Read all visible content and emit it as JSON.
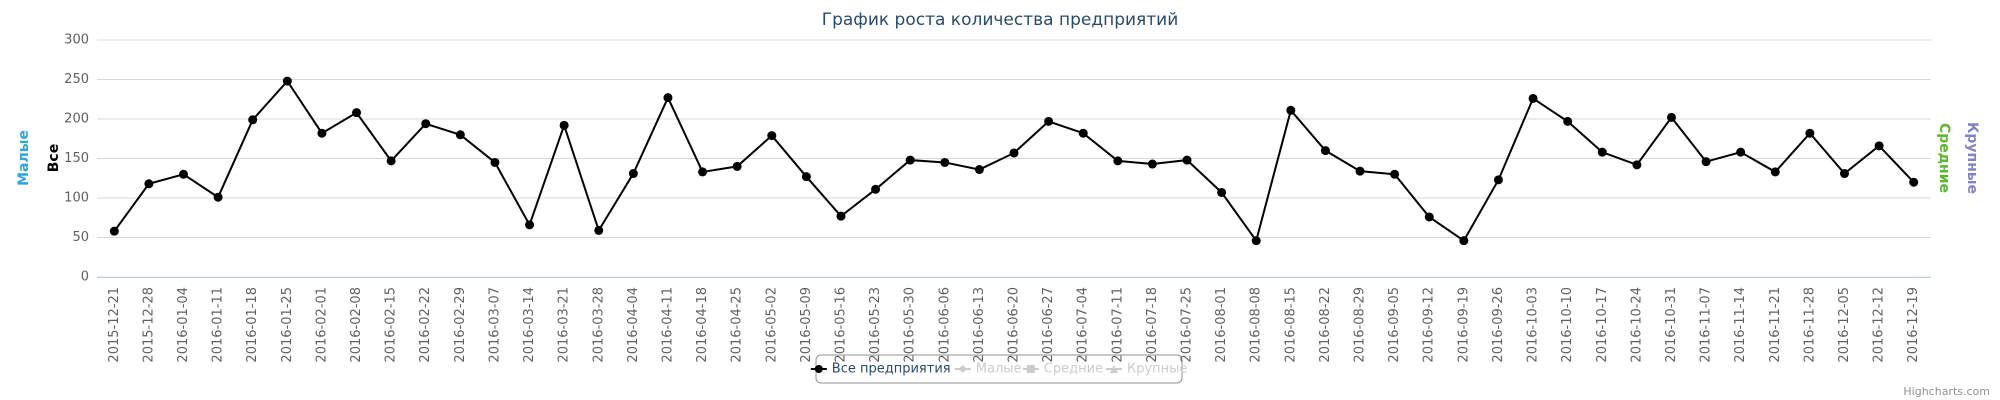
{
  "chart_data": {
    "type": "line",
    "title": "График роста количества предприятий",
    "y_axis_titles": [
      {
        "text": "Малые",
        "color": "#2ea6d8",
        "side": "left"
      },
      {
        "text": "Все",
        "color": "#000000",
        "side": "left"
      },
      {
        "text": "Средние",
        "color": "#5cb82e",
        "side": "right"
      },
      {
        "text": "Крупные",
        "color": "#8085c8",
        "side": "right"
      }
    ],
    "categories": [
      "2015-12-21",
      "2015-12-28",
      "2016-01-04",
      "2016-01-11",
      "2016-01-18",
      "2016-01-25",
      "2016-02-01",
      "2016-02-08",
      "2016-02-15",
      "2016-02-22",
      "2016-02-29",
      "2016-03-07",
      "2016-03-14",
      "2016-03-21",
      "2016-03-28",
      "2016-04-04",
      "2016-04-11",
      "2016-04-18",
      "2016-04-25",
      "2016-05-02",
      "2016-05-09",
      "2016-05-16",
      "2016-05-23",
      "2016-05-30",
      "2016-06-06",
      "2016-06-13",
      "2016-06-20",
      "2016-06-27",
      "2016-07-04",
      "2016-07-11",
      "2016-07-18",
      "2016-07-25",
      "2016-08-01",
      "2016-08-08",
      "2016-08-15",
      "2016-08-22",
      "2016-08-29",
      "2016-09-05",
      "2016-09-12",
      "2016-09-19",
      "2016-09-26",
      "2016-10-03",
      "2016-10-10",
      "2016-10-17",
      "2016-10-24",
      "2016-10-31",
      "2016-11-07",
      "2016-11-14",
      "2016-11-21",
      "2016-11-28",
      "2016-12-05",
      "2016-12-12",
      "2016-12-19"
    ],
    "series": [
      {
        "name": "Все предприятия",
        "color": "#000000",
        "marker": "circle",
        "visible": true,
        "values": [
          58,
          118,
          130,
          101,
          199,
          248,
          182,
          208,
          147,
          194,
          180,
          145,
          66,
          192,
          59,
          131,
          227,
          133,
          140,
          179,
          127,
          77,
          111,
          148,
          145,
          136,
          157,
          197,
          182,
          147,
          143,
          148,
          107,
          46,
          211,
          160,
          134,
          130,
          76,
          46,
          123,
          226,
          197,
          158,
          142,
          202,
          146,
          158,
          133,
          182,
          131,
          166,
          120
        ]
      },
      {
        "name": "Малые",
        "color": "#2ea6d8",
        "marker": "diamond",
        "visible": false
      },
      {
        "name": "Средние",
        "color": "#5cb82e",
        "marker": "square",
        "visible": false
      },
      {
        "name": "Крупные",
        "color": "#8085c8",
        "marker": "triangle",
        "visible": false
      }
    ],
    "ylim": [
      0,
      300
    ],
    "yticks": [
      0,
      50,
      100,
      150,
      200,
      250,
      300
    ],
    "grid": true,
    "legend": "bottom",
    "credits": "Highcharts.com"
  }
}
